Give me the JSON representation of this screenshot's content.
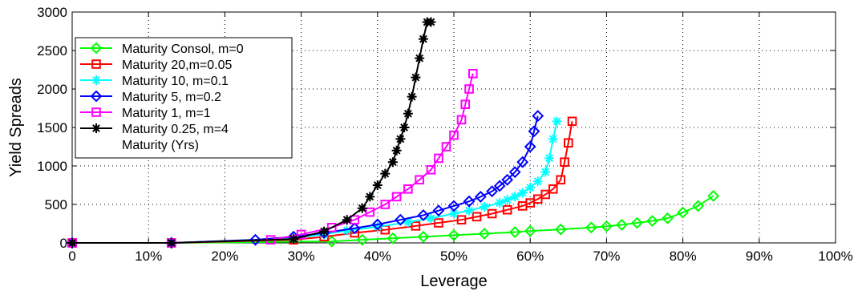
{
  "chart_data": {
    "type": "line",
    "title": "",
    "xlabel": "Leverage",
    "ylabel": "Yield Spreads",
    "xlim": [
      0,
      1
    ],
    "ylim": [
      0,
      3000
    ],
    "x_ticks": [
      0,
      0.1,
      0.2,
      0.3,
      0.4,
      0.5,
      0.6,
      0.7,
      0.8,
      0.9,
      1.0
    ],
    "x_tick_labels": [
      "0",
      "10%",
      "20%",
      "30%",
      "40%",
      "50%",
      "60%",
      "70%",
      "80%",
      "90%",
      "100%"
    ],
    "y_ticks": [
      0,
      500,
      1000,
      1500,
      2000,
      2500,
      3000
    ],
    "y_tick_labels": [
      "0",
      "500",
      "1000",
      "1500",
      "2000",
      "2500",
      "3000"
    ],
    "grid": true,
    "legend_position": "top-left",
    "legend_extra": "Maturity (Yrs)",
    "series": [
      {
        "name": "Maturity Consol, m=0",
        "color": "#00ff00",
        "marker": "diamond",
        "x": [
          0,
          0.13,
          0.34,
          0.38,
          0.42,
          0.46,
          0.5,
          0.54,
          0.58,
          0.6,
          0.64,
          0.68,
          0.7,
          0.72,
          0.74,
          0.76,
          0.78,
          0.8,
          0.82,
          0.84
        ],
        "y": [
          0,
          0,
          20,
          40,
          60,
          80,
          100,
          120,
          140,
          155,
          175,
          200,
          215,
          235,
          260,
          285,
          320,
          395,
          480,
          610
        ]
      },
      {
        "name": "Maturity 20,m=0.05",
        "color": "#ff0000",
        "marker": "square",
        "x": [
          0,
          0.13,
          0.29,
          0.33,
          0.37,
          0.41,
          0.45,
          0.48,
          0.51,
          0.53,
          0.55,
          0.57,
          0.59,
          0.6,
          0.61,
          0.62,
          0.63,
          0.64,
          0.645,
          0.65,
          0.655
        ],
        "y": [
          0,
          0,
          40,
          80,
          130,
          170,
          220,
          260,
          300,
          340,
          380,
          430,
          480,
          520,
          570,
          630,
          700,
          820,
          1050,
          1300,
          1580
        ]
      },
      {
        "name": "Maturity 10, m=0.1",
        "color": "#00ffff",
        "marker": "star",
        "x": [
          0,
          0.13,
          0.29,
          0.33,
          0.36,
          0.4,
          0.44,
          0.47,
          0.5,
          0.52,
          0.54,
          0.56,
          0.57,
          0.58,
          0.59,
          0.6,
          0.61,
          0.62,
          0.625,
          0.63,
          0.635
        ],
        "y": [
          0,
          0,
          60,
          110,
          160,
          210,
          270,
          320,
          380,
          420,
          470,
          520,
          560,
          600,
          650,
          720,
          800,
          920,
          1100,
          1350,
          1580
        ]
      },
      {
        "name": "Maturity 5, m=0.2",
        "color": "#0000ff",
        "marker": "diamond",
        "x": [
          0,
          0.13,
          0.24,
          0.29,
          0.33,
          0.37,
          0.4,
          0.43,
          0.46,
          0.48,
          0.5,
          0.52,
          0.535,
          0.55,
          0.56,
          0.57,
          0.58,
          0.59,
          0.6,
          0.605,
          0.61
        ],
        "y": [
          0,
          0,
          40,
          80,
          130,
          190,
          240,
          300,
          360,
          420,
          480,
          540,
          600,
          670,
          740,
          820,
          920,
          1050,
          1250,
          1450,
          1650
        ]
      },
      {
        "name": "Maturity 1, m=1",
        "color": "#ff00ff",
        "marker": "square",
        "x": [
          0,
          0.13,
          0.26,
          0.3,
          0.34,
          0.37,
          0.39,
          0.41,
          0.425,
          0.44,
          0.455,
          0.47,
          0.48,
          0.49,
          0.5,
          0.51,
          0.515,
          0.52,
          0.525
        ],
        "y": [
          0,
          0,
          40,
          110,
          200,
          300,
          400,
          500,
          600,
          700,
          820,
          950,
          1100,
          1250,
          1400,
          1600,
          1800,
          2000,
          2200
        ]
      },
      {
        "name": "Maturity 0.25, m=4",
        "color": "#000000",
        "marker": "asterisk",
        "x": [
          0,
          0.13,
          0.29,
          0.33,
          0.36,
          0.38,
          0.39,
          0.4,
          0.41,
          0.42,
          0.425,
          0.43,
          0.435,
          0.44,
          0.445,
          0.45,
          0.455,
          0.46,
          0.465,
          0.47
        ],
        "y": [
          0,
          0,
          50,
          150,
          300,
          450,
          600,
          750,
          900,
          1050,
          1200,
          1350,
          1500,
          1680,
          1900,
          2150,
          2400,
          2650,
          2870,
          2870
        ]
      }
    ]
  }
}
